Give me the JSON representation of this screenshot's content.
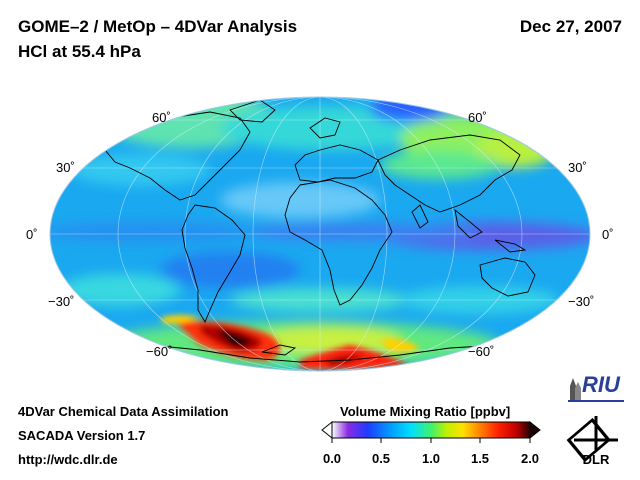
{
  "header": {
    "title_line1": "GOME–2 / MetOp – 4DVar Analysis",
    "title_line2": "HCl at 55.4 hPa",
    "date": "Dec 27, 2007"
  },
  "map": {
    "projection": "Hammer / Mollweide (global)",
    "lat_labels": [
      "60˚",
      "30˚",
      "0˚",
      "−30˚",
      "−60˚"
    ]
  },
  "footer": {
    "line1": "4DVar Chemical Data Assimilation",
    "line2": "SACADA Version 1.7",
    "line3": "http://wdc.dlr.de"
  },
  "colorbar": {
    "title": "Volume Mixing Ratio [ppbv]",
    "ticks": [
      "0.0",
      "0.5",
      "1.0",
      "1.5",
      "2.0"
    ],
    "colors": [
      "#ffffff",
      "#8a2be2",
      "#1e3cff",
      "#00a0ff",
      "#00e0ff",
      "#40f070",
      "#c0f000",
      "#ffe000",
      "#ff8000",
      "#ff2000",
      "#c00000",
      "#2a0000"
    ]
  },
  "logos": {
    "riu": "RIU",
    "dlr": "DLR"
  }
}
